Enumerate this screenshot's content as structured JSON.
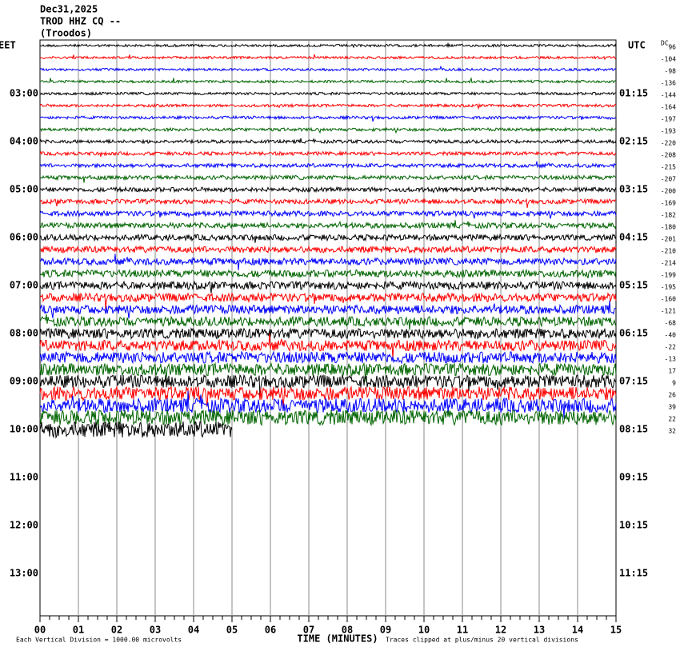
{
  "header": {
    "date": "Dec31,2025",
    "station": "TROD HHZ CQ --",
    "location": "(Troodos)"
  },
  "left_zone": "EET",
  "right_zone": "UTC",
  "dc_label": "DC",
  "left_times": [
    "03:00",
    "04:00",
    "05:00",
    "06:00",
    "07:00",
    "08:00",
    "09:00",
    "10:00",
    "11:00",
    "12:00",
    "13:00"
  ],
  "right_times": [
    "01:15",
    "02:15",
    "03:15",
    "04:15",
    "05:15",
    "06:15",
    "07:15",
    "08:15",
    "09:15",
    "10:15",
    "11:15"
  ],
  "dc_offsets": [
    96,
    -104,
    -98,
    -136,
    -144,
    -164,
    -197,
    -193,
    -220,
    -208,
    -215,
    -207,
    -200,
    -169,
    -182,
    -180,
    -201,
    -210,
    -214,
    -199,
    -195,
    -160,
    -121,
    -68,
    -40,
    -22,
    -13,
    17,
    9,
    26,
    39,
    22,
    32
  ],
  "x_axis": {
    "ticks": [
      "00",
      "01",
      "02",
      "03",
      "04",
      "05",
      "06",
      "07",
      "08",
      "09",
      "10",
      "11",
      "12",
      "13",
      "14",
      "15"
    ],
    "title": "TIME (MINUTES)"
  },
  "footer": {
    "scale_note": "Each Vertical Division = 1000.00 microvolts",
    "clip_note": "Traces clipped at plus/minus 20 vertical divisions"
  }
}
